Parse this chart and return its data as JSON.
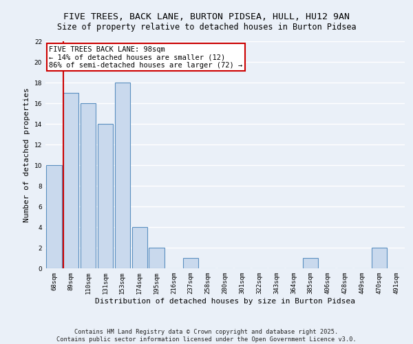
{
  "title": "FIVE TREES, BACK LANE, BURTON PIDSEA, HULL, HU12 9AN",
  "subtitle": "Size of property relative to detached houses in Burton Pidsea",
  "xlabel": "Distribution of detached houses by size in Burton Pidsea",
  "ylabel": "Number of detached properties",
  "categories": [
    "68sqm",
    "89sqm",
    "110sqm",
    "131sqm",
    "153sqm",
    "174sqm",
    "195sqm",
    "216sqm",
    "237sqm",
    "258sqm",
    "280sqm",
    "301sqm",
    "322sqm",
    "343sqm",
    "364sqm",
    "385sqm",
    "406sqm",
    "428sqm",
    "449sqm",
    "470sqm",
    "491sqm"
  ],
  "values": [
    10,
    17,
    16,
    14,
    18,
    4,
    2,
    0,
    1,
    0,
    0,
    0,
    0,
    0,
    0,
    1,
    0,
    0,
    0,
    2,
    0
  ],
  "bar_color": "#c9d9ed",
  "bar_edge_color": "#5a8fc0",
  "vline_x": 0.55,
  "vline_color": "#cc0000",
  "annotation_text": "FIVE TREES BACK LANE: 98sqm\n← 14% of detached houses are smaller (12)\n86% of semi-detached houses are larger (72) →",
  "annotation_box_color": "#ffffff",
  "annotation_box_edge": "#cc0000",
  "ylim": [
    0,
    22
  ],
  "yticks": [
    0,
    2,
    4,
    6,
    8,
    10,
    12,
    14,
    16,
    18,
    20,
    22
  ],
  "background_color": "#eaf0f8",
  "grid_color": "#ffffff",
  "footer": "Contains HM Land Registry data © Crown copyright and database right 2025.\nContains public sector information licensed under the Open Government Licence v3.0.",
  "title_fontsize": 9.5,
  "subtitle_fontsize": 8.5,
  "tick_fontsize": 6.5,
  "ylabel_fontsize": 8,
  "xlabel_fontsize": 8,
  "annotation_fontsize": 7.5
}
